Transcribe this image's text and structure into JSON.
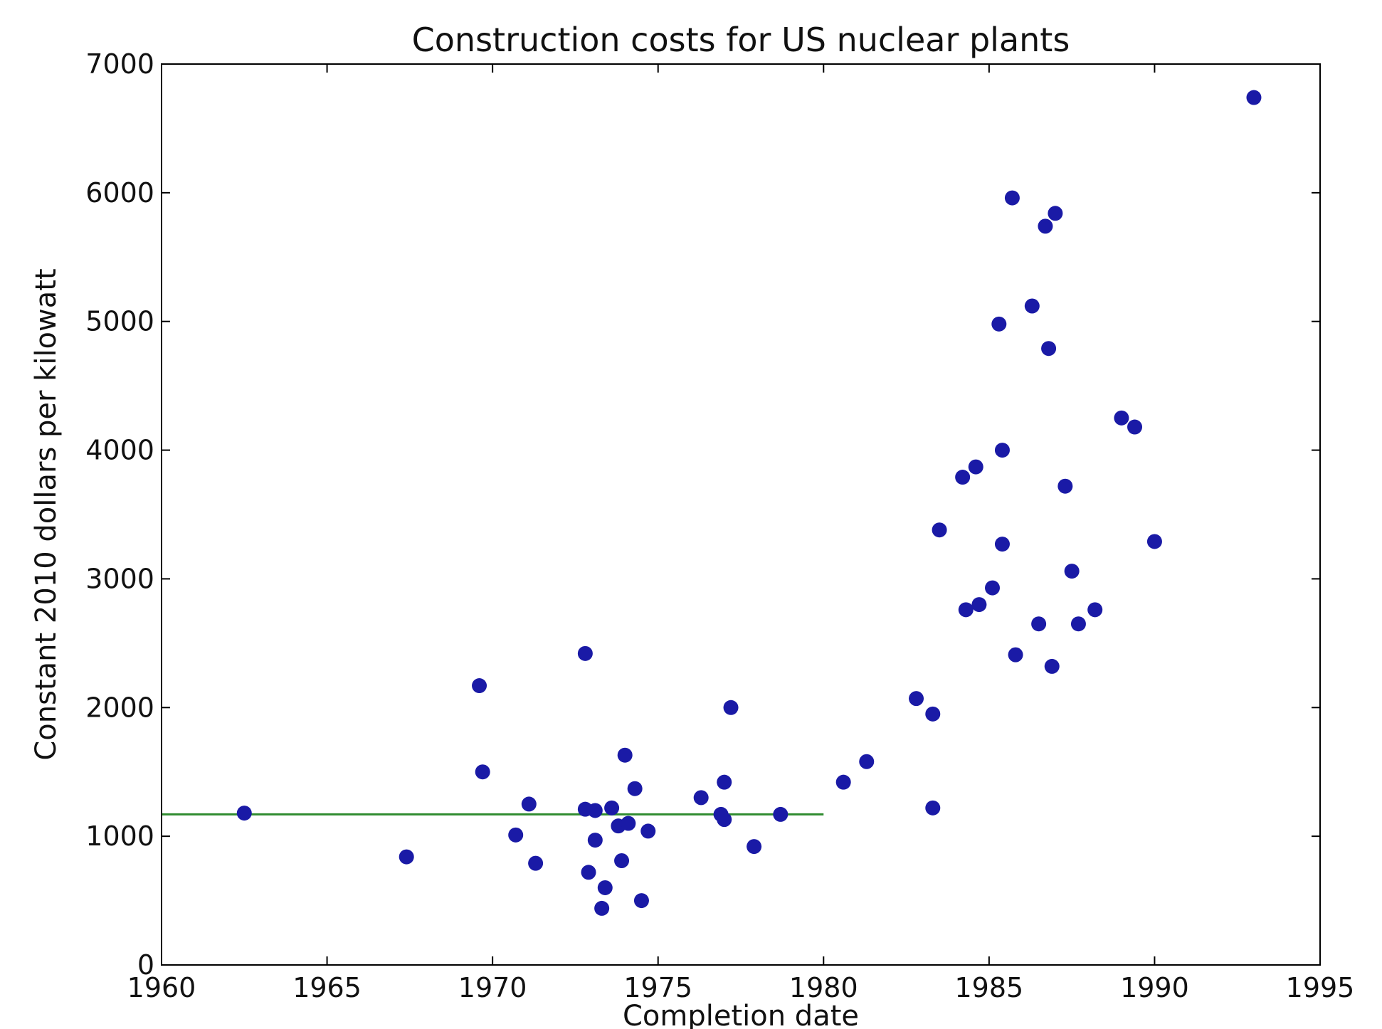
{
  "chart_data": {
    "type": "scatter",
    "title": "Construction costs for US nuclear plants",
    "xlabel": "Completion date",
    "ylabel": "Constant 2010 dollars per kilowatt",
    "xlim": [
      1960,
      1995
    ],
    "ylim": [
      0,
      7000
    ],
    "x_ticks": [
      1960,
      1965,
      1970,
      1975,
      1980,
      1985,
      1990,
      1995
    ],
    "y_ticks": [
      0,
      1000,
      2000,
      3000,
      4000,
      5000,
      6000,
      7000
    ],
    "x_tick_labels": [
      "1960",
      "1965",
      "1970",
      "1975",
      "1980",
      "1985",
      "1990",
      "1995"
    ],
    "y_tick_labels": [
      "0",
      "1000",
      "2000",
      "3000",
      "4000",
      "5000",
      "6000",
      "7000"
    ],
    "grid": false,
    "legend": false,
    "colors": {
      "points": "#1a1aa6",
      "reference_line": "#2e8b2e",
      "axes": "#000000"
    },
    "reference_line": {
      "x": [
        1960,
        1980
      ],
      "y": [
        1170,
        1170
      ]
    },
    "series": [
      {
        "points": [
          [
            1962.5,
            1180
          ],
          [
            1967.4,
            840
          ],
          [
            1969.6,
            2170
          ],
          [
            1969.7,
            1500
          ],
          [
            1970.7,
            1010
          ],
          [
            1971.1,
            1250
          ],
          [
            1971.3,
            790
          ],
          [
            1972.8,
            2420
          ],
          [
            1972.8,
            1210
          ],
          [
            1972.9,
            720
          ],
          [
            1973.1,
            1200
          ],
          [
            1973.1,
            970
          ],
          [
            1973.3,
            440
          ],
          [
            1973.4,
            600
          ],
          [
            1973.6,
            1220
          ],
          [
            1973.8,
            1080
          ],
          [
            1973.9,
            810
          ],
          [
            1974.0,
            1630
          ],
          [
            1974.1,
            1100
          ],
          [
            1974.3,
            1370
          ],
          [
            1974.5,
            500
          ],
          [
            1974.7,
            1040
          ],
          [
            1976.3,
            1300
          ],
          [
            1976.9,
            1170
          ],
          [
            1977.0,
            1420
          ],
          [
            1977.0,
            1130
          ],
          [
            1977.2,
            2000
          ],
          [
            1977.9,
            920
          ],
          [
            1978.7,
            1170
          ],
          [
            1980.6,
            1420
          ],
          [
            1981.3,
            1580
          ],
          [
            1982.8,
            2070
          ],
          [
            1983.3,
            1950
          ],
          [
            1983.3,
            1220
          ],
          [
            1983.5,
            3380
          ],
          [
            1984.2,
            3790
          ],
          [
            1984.3,
            2760
          ],
          [
            1984.6,
            3870
          ],
          [
            1984.7,
            2800
          ],
          [
            1985.1,
            2930
          ],
          [
            1985.3,
            4980
          ],
          [
            1985.4,
            4000
          ],
          [
            1985.4,
            3270
          ],
          [
            1985.7,
            5960
          ],
          [
            1985.8,
            2410
          ],
          [
            1986.3,
            5120
          ],
          [
            1986.5,
            2650
          ],
          [
            1986.7,
            5740
          ],
          [
            1986.8,
            4790
          ],
          [
            1986.9,
            2320
          ],
          [
            1987.0,
            5840
          ],
          [
            1987.3,
            3720
          ],
          [
            1987.5,
            3060
          ],
          [
            1987.7,
            2650
          ],
          [
            1988.2,
            2760
          ],
          [
            1989.0,
            4250
          ],
          [
            1989.4,
            4180
          ],
          [
            1990.0,
            3290
          ],
          [
            1993.0,
            6740
          ]
        ]
      }
    ]
  }
}
